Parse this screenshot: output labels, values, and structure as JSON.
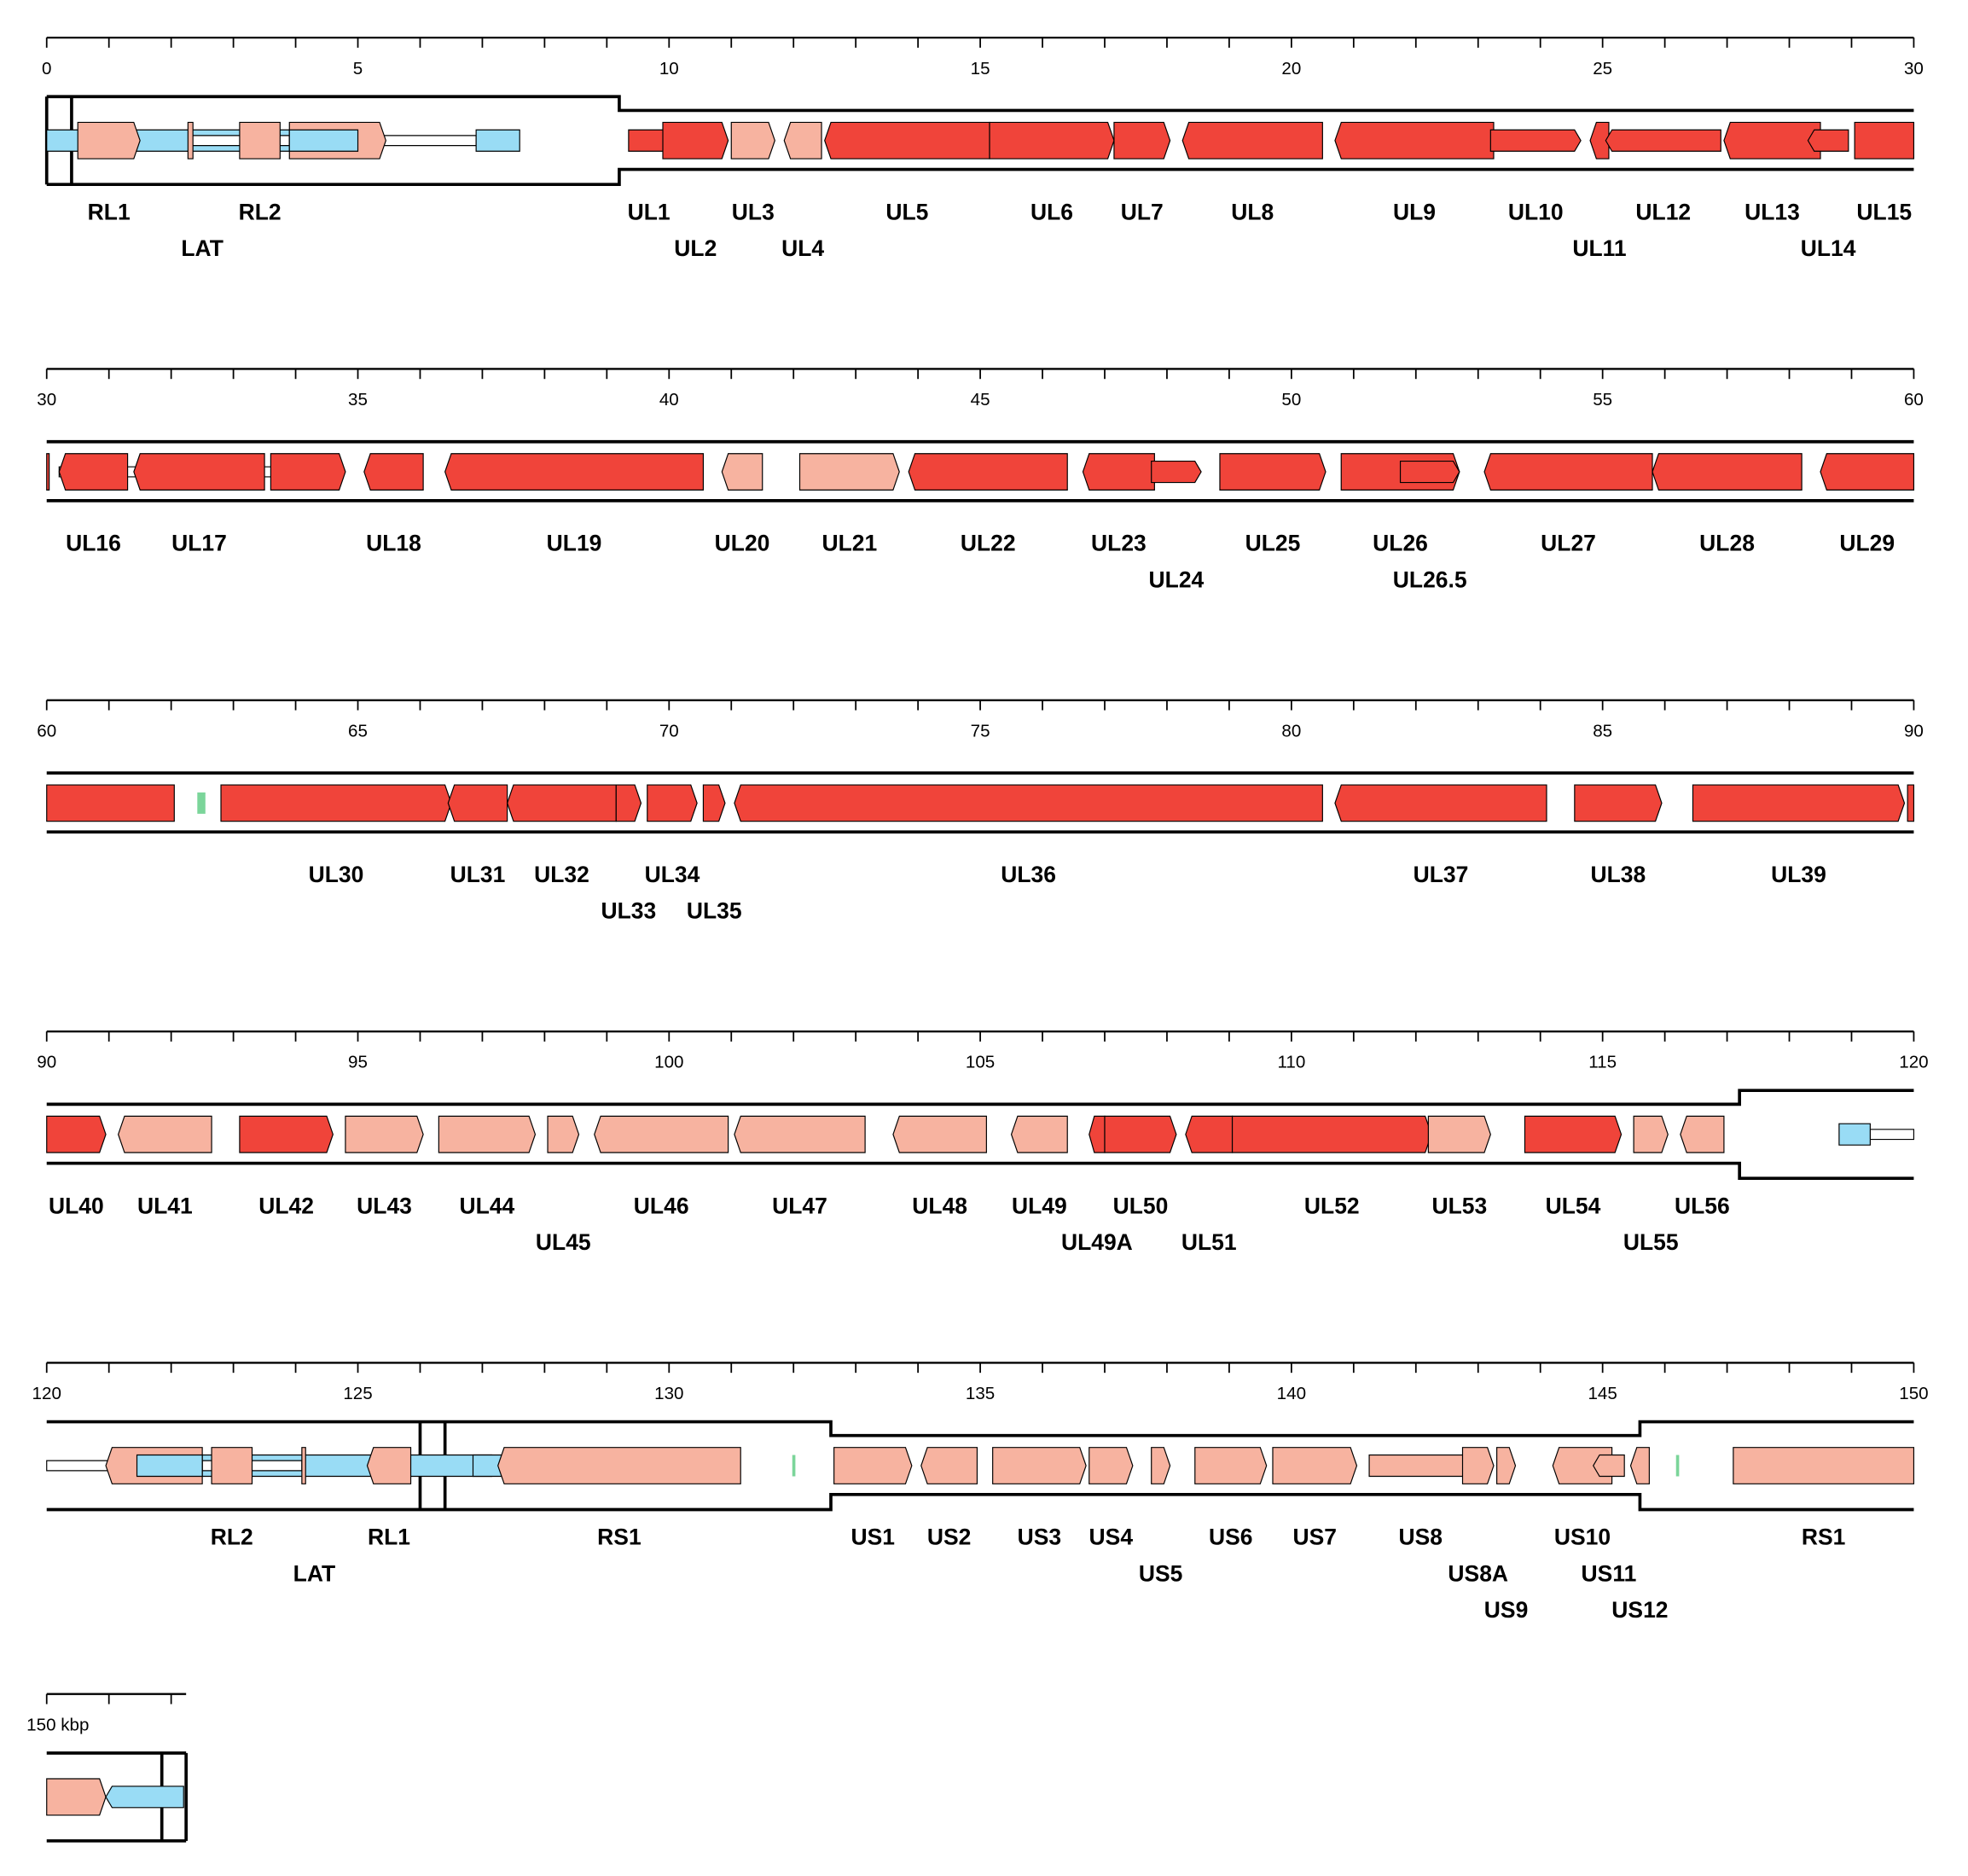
{
  "colors": {
    "r": "#f0443a",
    "s": "#f7b3a0",
    "b": "#99dcf5",
    "g": "#7bd59a",
    "w": "#ffffff"
  },
  "genome_length_kbp": 152.24,
  "row_span_kbp": 30,
  "unit_label": "150 kbp",
  "repeat_regions": [
    [
      0,
      9.2
    ],
    [
      117.2,
      132.6
    ],
    [
      145.6,
      152.24
    ]
  ],
  "junction_lines": [
    0.4,
    126.0,
    126.4,
    151.85
  ],
  "features": [
    {
      "s": 0,
      "e": 5.0,
      "d": 0,
      "t": "b",
      "thin": 1,
      "label": "LAT"
    },
    {
      "s": 2.3,
      "e": 3.9,
      "d": 0,
      "t": "w",
      "intron": 1
    },
    {
      "s": 5.0,
      "e": 6.9,
      "d": 0,
      "t": "w",
      "intron": 1
    },
    {
      "s": 6.9,
      "e": 7.6,
      "d": 0,
      "t": "b",
      "thin": 1
    },
    {
      "s": 0.5,
      "e": 1.5,
      "d": 1,
      "t": "s",
      "label": "RL1"
    },
    {
      "s": 2.27,
      "e": 2.35,
      "d": 0,
      "t": "s"
    },
    {
      "s": 3.1,
      "e": 3.75,
      "d": 0,
      "t": "s",
      "label": "RL2"
    },
    {
      "s": 3.9,
      "e": 5.45,
      "d": 1,
      "t": "s"
    },
    {
      "s": 3.9,
      "e": 5.0,
      "d": 0,
      "t": "b",
      "thin": 1
    },
    {
      "s": 9.35,
      "e": 10.0,
      "d": 1,
      "t": "r",
      "thin": 1,
      "label": "UL1"
    },
    {
      "s": 9.9,
      "e": 10.95,
      "d": 1,
      "t": "r",
      "label": "UL2"
    },
    {
      "s": 11.0,
      "e": 11.7,
      "d": 1,
      "t": "s",
      "label": "UL3"
    },
    {
      "s": 11.85,
      "e": 12.45,
      "d": -1,
      "t": "s",
      "label": "UL4"
    },
    {
      "s": 12.5,
      "e": 15.15,
      "d": -1,
      "t": "r",
      "label": "UL5"
    },
    {
      "s": 15.15,
      "e": 17.15,
      "d": 1,
      "t": "r",
      "label": "UL6"
    },
    {
      "s": 17.15,
      "e": 18.05,
      "d": 1,
      "t": "r",
      "label": "UL7"
    },
    {
      "s": 18.25,
      "e": 20.5,
      "d": -1,
      "t": "r",
      "label": "UL8"
    },
    {
      "s": 20.7,
      "e": 23.25,
      "d": -1,
      "t": "r",
      "label": "UL9"
    },
    {
      "s": 23.2,
      "e": 24.65,
      "d": 1,
      "t": "r",
      "thin": 1,
      "label": "UL10"
    },
    {
      "s": 24.8,
      "e": 25.1,
      "d": -1,
      "t": "r",
      "label": "UL11"
    },
    {
      "s": 25.05,
      "e": 26.9,
      "d": -1,
      "t": "r",
      "thin": 1,
      "label": "UL12"
    },
    {
      "s": 26.95,
      "e": 28.5,
      "d": -1,
      "t": "r",
      "label": "UL13"
    },
    {
      "s": 28.3,
      "e": 28.95,
      "d": -1,
      "t": "r",
      "thin": 1,
      "label": "UL14"
    },
    {
      "s": 29.05,
      "e": 30.0,
      "d": 0,
      "t": "r",
      "label": "UL15"
    },
    {
      "s": 30.0,
      "e": 30.04,
      "d": 0,
      "t": "r"
    },
    {
      "s": 30.2,
      "e": 33.65,
      "d": 0,
      "t": "w",
      "intron": 1
    },
    {
      "s": 30.2,
      "e": 31.3,
      "d": -1,
      "t": "r",
      "label": "UL16"
    },
    {
      "s": 31.4,
      "e": 33.5,
      "d": -1,
      "t": "r",
      "label": "UL17"
    },
    {
      "s": 33.6,
      "e": 34.8,
      "d": 1,
      "t": "r"
    },
    {
      "s": 35.1,
      "e": 36.05,
      "d": -1,
      "t": "r",
      "label": "UL18"
    },
    {
      "s": 36.4,
      "e": 40.55,
      "d": -1,
      "t": "r",
      "label": "UL19"
    },
    {
      "s": 40.85,
      "e": 41.5,
      "d": -1,
      "t": "s",
      "label": "UL20"
    },
    {
      "s": 42.1,
      "e": 43.7,
      "d": 1,
      "t": "s",
      "label": "UL21"
    },
    {
      "s": 43.85,
      "e": 46.4,
      "d": -1,
      "t": "r",
      "label": "UL22"
    },
    {
      "s": 46.65,
      "e": 47.8,
      "d": -1,
      "t": "r",
      "label": "UL23"
    },
    {
      "s": 47.75,
      "e": 48.55,
      "d": 1,
      "t": "r",
      "thin": 1,
      "label": "UL24"
    },
    {
      "s": 48.85,
      "e": 50.55,
      "d": 1,
      "t": "r",
      "label": "UL25"
    },
    {
      "s": 50.8,
      "e": 52.7,
      "d": 1,
      "t": "r",
      "label": "UL26"
    },
    {
      "s": 51.75,
      "e": 52.7,
      "d": 1,
      "t": "r",
      "thin": 1,
      "label": "UL26.5"
    },
    {
      "s": 53.1,
      "e": 55.8,
      "d": -1,
      "t": "r",
      "label": "UL27"
    },
    {
      "s": 55.8,
      "e": 58.2,
      "d": -1,
      "t": "r",
      "label": "UL28"
    },
    {
      "s": 58.5,
      "e": 60.0,
      "d": -1,
      "t": "r",
      "label": "UL29"
    },
    {
      "s": 60.0,
      "e": 62.05,
      "d": 0,
      "t": "r"
    },
    {
      "s": 62.42,
      "e": 62.55,
      "d": 0,
      "t": "g",
      "thin": 1
    },
    {
      "s": 62.8,
      "e": 66.5,
      "d": 1,
      "t": "r",
      "label": "UL30"
    },
    {
      "s": 66.45,
      "e": 67.4,
      "d": -1,
      "t": "r",
      "label": "UL31"
    },
    {
      "s": 67.4,
      "e": 69.15,
      "d": -1,
      "t": "r",
      "label": "UL32"
    },
    {
      "s": 69.15,
      "e": 69.55,
      "d": 1,
      "t": "r",
      "label": "UL33"
    },
    {
      "s": 69.65,
      "e": 70.45,
      "d": 1,
      "t": "r",
      "label": "UL34"
    },
    {
      "s": 70.55,
      "e": 70.9,
      "d": 1,
      "t": "r",
      "label": "UL35"
    },
    {
      "s": 71.05,
      "e": 80.5,
      "d": -1,
      "t": "r",
      "label": "UL36"
    },
    {
      "s": 80.7,
      "e": 84.1,
      "d": -1,
      "t": "r",
      "label": "UL37"
    },
    {
      "s": 84.55,
      "e": 85.95,
      "d": 1,
      "t": "r",
      "label": "UL38"
    },
    {
      "s": 86.45,
      "e": 89.85,
      "d": 1,
      "t": "r",
      "label": "UL39"
    },
    {
      "s": 89.9,
      "e": 90.0,
      "d": 0,
      "t": "r"
    },
    {
      "s": 90.0,
      "e": 90.95,
      "d": 1,
      "t": "r",
      "label": "UL40"
    },
    {
      "s": 91.15,
      "e": 92.65,
      "d": -1,
      "t": "s",
      "label": "UL41"
    },
    {
      "s": 93.1,
      "e": 94.6,
      "d": 1,
      "t": "r",
      "label": "UL42"
    },
    {
      "s": 94.8,
      "e": 96.05,
      "d": 1,
      "t": "s",
      "label": "UL43"
    },
    {
      "s": 96.3,
      "e": 97.85,
      "d": 1,
      "t": "s",
      "label": "UL44"
    },
    {
      "s": 98.05,
      "e": 98.55,
      "d": 1,
      "t": "s",
      "label": "UL45"
    },
    {
      "s": 98.8,
      "e": 100.95,
      "d": -1,
      "t": "s",
      "label": "UL46"
    },
    {
      "s": 101.05,
      "e": 103.15,
      "d": -1,
      "t": "s",
      "label": "UL47"
    },
    {
      "s": 103.6,
      "e": 105.1,
      "d": -1,
      "t": "s",
      "label": "UL48"
    },
    {
      "s": 105.5,
      "e": 106.4,
      "d": -1,
      "t": "s",
      "label": "UL49"
    },
    {
      "s": 106.75,
      "e": 107.0,
      "d": -1,
      "t": "r",
      "label": "UL49A"
    },
    {
      "s": 107.0,
      "e": 108.15,
      "d": 1,
      "t": "r",
      "label": "UL50"
    },
    {
      "s": 108.3,
      "e": 109.05,
      "d": -1,
      "t": "r",
      "label": "UL51"
    },
    {
      "s": 109.05,
      "e": 112.25,
      "d": 1,
      "t": "r",
      "label": "UL52"
    },
    {
      "s": 112.2,
      "e": 113.2,
      "d": 1,
      "t": "s",
      "label": "UL53"
    },
    {
      "s": 113.75,
      "e": 115.3,
      "d": 1,
      "t": "r",
      "label": "UL54"
    },
    {
      "s": 115.5,
      "e": 116.05,
      "d": 1,
      "t": "s",
      "label": "UL55"
    },
    {
      "s": 116.25,
      "e": 116.95,
      "d": -1,
      "t": "s",
      "label": "UL56"
    },
    {
      "s": 119.3,
      "e": 120.0,
      "d": 0,
      "t": "w",
      "intron": 1
    },
    {
      "s": 118.8,
      "e": 119.3,
      "d": 0,
      "t": "b",
      "thin": 1
    },
    {
      "s": 120.0,
      "e": 121.45,
      "d": 0,
      "t": "w",
      "intron": 1
    },
    {
      "s": 121.45,
      "e": 127.15,
      "d": 0,
      "t": "b",
      "thin": 1,
      "label": "LAT"
    },
    {
      "s": 122.5,
      "e": 124.1,
      "d": 0,
      "t": "w",
      "intron": 1
    },
    {
      "s": 126.85,
      "e": 128.15,
      "d": 1,
      "t": "b",
      "thin": 1
    },
    {
      "s": 120.95,
      "e": 122.5,
      "d": -1,
      "t": "s"
    },
    {
      "s": 122.65,
      "e": 123.3,
      "d": 0,
      "t": "s",
      "label": "RL2"
    },
    {
      "s": 121.45,
      "e": 122.5,
      "d": 0,
      "t": "b",
      "thin": 1
    },
    {
      "s": 124.1,
      "e": 124.16,
      "d": 0,
      "t": "s"
    },
    {
      "s": 125.15,
      "e": 125.85,
      "d": -1,
      "t": "s",
      "label": "RL1"
    },
    {
      "s": 127.25,
      "e": 131.15,
      "d": -1,
      "t": "s",
      "label": "RS1"
    },
    {
      "s": 131.98,
      "e": 132.03,
      "d": 0,
      "t": "g",
      "thin": 1
    },
    {
      "s": 132.65,
      "e": 133.9,
      "d": 1,
      "t": "s",
      "label": "US1"
    },
    {
      "s": 134.05,
      "e": 134.95,
      "d": -1,
      "t": "s",
      "label": "US2"
    },
    {
      "s": 135.2,
      "e": 136.7,
      "d": 1,
      "t": "s",
      "label": "US3"
    },
    {
      "s": 136.75,
      "e": 137.45,
      "d": 1,
      "t": "s",
      "label": "US4"
    },
    {
      "s": 137.75,
      "e": 138.05,
      "d": 1,
      "t": "s",
      "label": "US5"
    },
    {
      "s": 138.45,
      "e": 139.6,
      "d": 1,
      "t": "s",
      "label": "US6"
    },
    {
      "s": 139.7,
      "e": 141.05,
      "d": 1,
      "t": "s",
      "label": "US7"
    },
    {
      "s": 141.25,
      "e": 142.9,
      "d": 1,
      "t": "s",
      "thin": 1,
      "label": "US8"
    },
    {
      "s": 142.75,
      "e": 143.25,
      "d": 1,
      "t": "s",
      "label": "US8A"
    },
    {
      "s": 143.3,
      "e": 143.6,
      "d": 1,
      "t": "s",
      "label": "US9"
    },
    {
      "s": 144.2,
      "e": 145.15,
      "d": -1,
      "t": "s",
      "label": "US10"
    },
    {
      "s": 144.85,
      "e": 145.35,
      "d": -1,
      "t": "s",
      "thin": 1,
      "label": "US11"
    },
    {
      "s": 145.45,
      "e": 145.75,
      "d": -1,
      "t": "s",
      "label": "US12"
    },
    {
      "s": 146.18,
      "e": 146.23,
      "d": 0,
      "t": "g",
      "thin": 1
    },
    {
      "s": 147.1,
      "e": 150.0,
      "d": 0,
      "t": "s",
      "label": "RS1"
    },
    {
      "s": 150.0,
      "e": 150.95,
      "d": 1,
      "t": "s"
    },
    {
      "s": 150.95,
      "e": 152.2,
      "d": -1,
      "t": "b",
      "thin": 1
    }
  ]
}
